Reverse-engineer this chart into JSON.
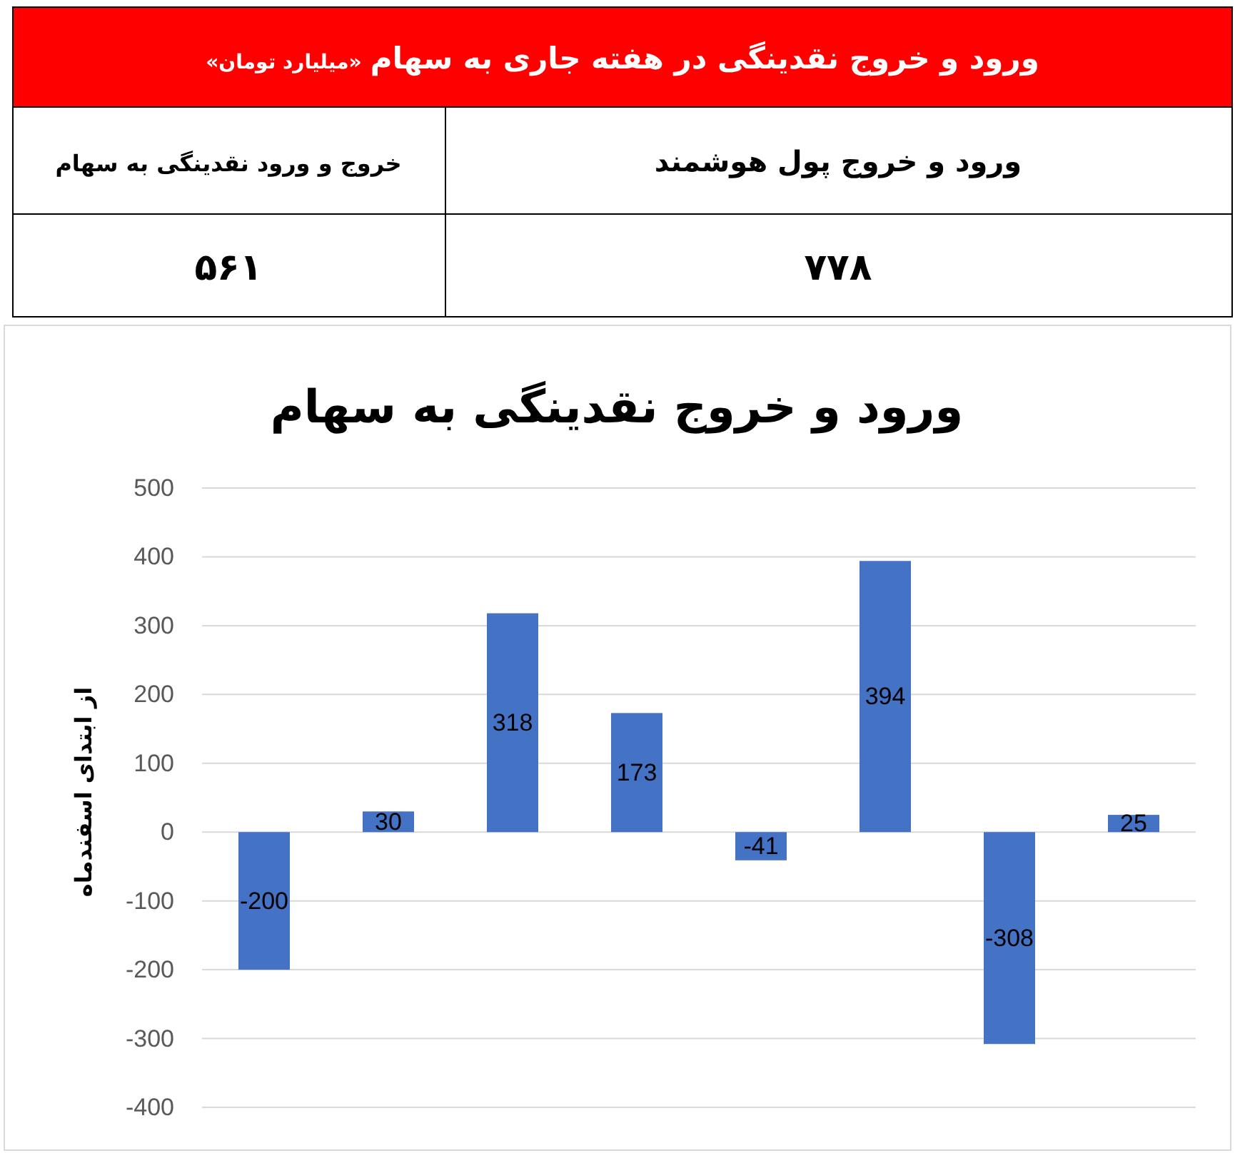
{
  "chart_data": [
    {
      "type": "other",
      "title": "ورود و خروج نقدینگی در هفته جاری به سهام",
      "subtitle": "«میلیارد تومان»",
      "annotations": [
        "ورود و خروج پول هوشمند",
        "۷۷۸",
        "خروج و ورود نقدینگی به سهام",
        "۵۶۱"
      ]
    },
    {
      "type": "bar",
      "title": "ورود و خروج نقدینگی به سهام",
      "ylabel": "از ابتدای اسفندماه",
      "categories": [
        null,
        null,
        null,
        null,
        null,
        null,
        null,
        null
      ],
      "values": [
        -200,
        30,
        318,
        173,
        -41,
        394,
        -308,
        25
      ],
      "color": "#4472c4",
      "ylim": [
        -400,
        500
      ],
      "yticks": [
        -400,
        -300,
        -200,
        -100,
        0,
        100,
        200,
        300,
        400,
        500
      ],
      "grid": "y",
      "data_labels": true
    }
  ]
}
